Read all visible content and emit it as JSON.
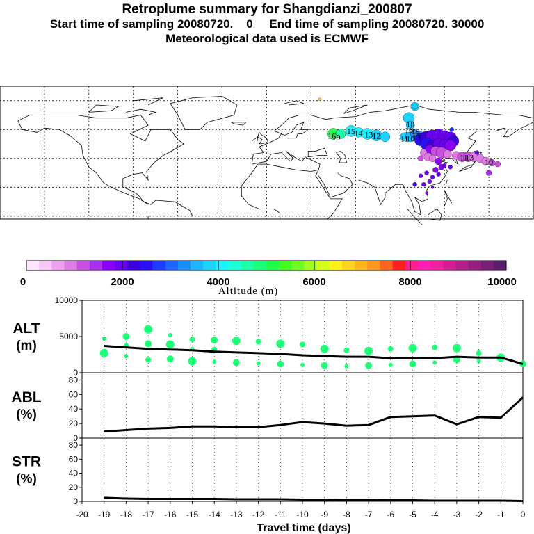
{
  "header": {
    "title": "Retroplume summary for Shangdianzi_200807",
    "subtitle": "Start time of sampling 20080720.    0     End time of sampling 20080720. 30000",
    "met_line": "Meteorological data used is ECMWF"
  },
  "chart_data": [
    {
      "type": "map",
      "name": "retroplume-map",
      "day_labels": [
        {
          "text": "19",
          "lon": 100.5,
          "lat": 58
        },
        {
          "text": "18",
          "lon": 97,
          "lat": 63
        },
        {
          "text": "16",
          "lon": 96,
          "lat": 59
        },
        {
          "text": "15",
          "lon": 57,
          "lat": 58
        },
        {
          "text": "14",
          "lon": 62,
          "lat": 57
        },
        {
          "text": "13",
          "lon": 69,
          "lat": 56
        },
        {
          "text": "12",
          "lon": 74,
          "lat": 55
        },
        {
          "text": "16",
          "lon": 44,
          "lat": 55
        },
        {
          "text": "19",
          "lon": 47,
          "lat": 54
        },
        {
          "text": "11",
          "lon": 93,
          "lat": 53
        },
        {
          "text": "10",
          "lon": 97,
          "lat": 53
        },
        {
          "text": "13",
          "lon": 101,
          "lat": 54
        },
        {
          "text": "11",
          "lon": 133,
          "lat": 40
        },
        {
          "text": "13",
          "lon": 137,
          "lat": 40
        },
        {
          "text": "10",
          "lon": 150,
          "lat": 37
        }
      ]
    },
    {
      "type": "colorbar",
      "name": "altitude-colorbar",
      "xlabel": "Altitude (m)",
      "range": [
        0,
        10000
      ],
      "tick_labels": [
        "0",
        "2000",
        "4000",
        "6000",
        "8000",
        "10000"
      ],
      "tick_values": [
        0,
        2000,
        4000,
        6000,
        8000,
        10000
      ],
      "colors": [
        "#fde6fd",
        "#f6c6f6",
        "#eea0ee",
        "#e07be4",
        "#c84fe0",
        "#a72fea",
        "#8a00f0",
        "#6a00f0",
        "#3c00d8",
        "#2a10f0",
        "#1e3cff",
        "#1e64ff",
        "#1e8cff",
        "#1eb4ff",
        "#1ed2ff",
        "#1ef0ff",
        "#1effd8",
        "#1effa8",
        "#1eff78",
        "#1eff48",
        "#40ff1e",
        "#6eff1e",
        "#a0ff1e",
        "#d2ff1e",
        "#fff01e",
        "#ffd21e",
        "#ffb41e",
        "#ff961e",
        "#ff641e",
        "#ff1e1e",
        "#ff1e8c",
        "#ff1eb4",
        "#f01ea0",
        "#d21e96",
        "#b41e8c",
        "#961e82",
        "#781e78",
        "#5a1e6e"
      ]
    },
    {
      "type": "line",
      "name": "alt-panel",
      "ylabel": "ALT",
      "yunit": "(m)",
      "ylim": [
        0,
        10000
      ],
      "ytick_labels": [
        "0",
        "5000",
        "10000"
      ],
      "ytick_values": [
        0,
        5000,
        10000
      ],
      "x": [
        -19,
        -18,
        -17,
        -16,
        -15,
        -14,
        -13,
        -12,
        -11,
        -10,
        -9,
        -8,
        -7,
        -6,
        -5,
        -4,
        -3,
        -2,
        -1,
        0
      ],
      "values": [
        3700,
        3500,
        3300,
        3200,
        3100,
        2900,
        2800,
        2700,
        2600,
        2400,
        2300,
        2200,
        2200,
        2000,
        2000,
        2000,
        2200,
        2100,
        2100,
        1200
      ],
      "scatter": {
        "x": [
          -19,
          -19,
          -18,
          -18,
          -18,
          -17,
          -17,
          -17,
          -16,
          -16,
          -16,
          -15,
          -15,
          -15,
          -14,
          -14,
          -14,
          -13,
          -13,
          -12,
          -12,
          -11,
          -11,
          -10,
          -10,
          -9,
          -9,
          -8,
          -8,
          -7,
          -7,
          -6,
          -6,
          -5,
          -5,
          -4,
          -4,
          -3,
          -3,
          -2,
          -2,
          -1,
          0
        ],
        "y": [
          4700,
          2700,
          5000,
          3700,
          2300,
          6000,
          4000,
          1800,
          5200,
          3900,
          1900,
          4600,
          3300,
          1600,
          4500,
          3200,
          1500,
          4400,
          1400,
          4300,
          1300,
          4000,
          1200,
          3900,
          1100,
          3300,
          1000,
          3100,
          900,
          3000,
          1000,
          3300,
          1100,
          3400,
          1200,
          3500,
          1400,
          3400,
          1800,
          2700,
          1600,
          2100,
          1200
        ],
        "color": "#1eff78"
      }
    },
    {
      "type": "line",
      "name": "abl-panel",
      "ylabel": "ABL",
      "yunit": "(%)",
      "ylim": [
        0,
        90
      ],
      "ytick_labels": [
        "0",
        "20",
        "40",
        "60",
        "80"
      ],
      "ytick_values": [
        0,
        20,
        40,
        60,
        80
      ],
      "x": [
        -19,
        -18,
        -17,
        -16,
        -15,
        -14,
        -13,
        -12,
        -11,
        -10,
        -9,
        -8,
        -7,
        -6,
        -5,
        -4,
        -3,
        -2,
        -1,
        0
      ],
      "values": [
        9,
        11,
        13,
        14,
        16,
        16,
        15,
        15,
        18,
        22,
        20,
        17,
        18,
        29,
        30,
        31,
        19,
        29,
        28,
        56
      ]
    },
    {
      "type": "line",
      "name": "str-panel",
      "ylabel": "STR",
      "yunit": "(%)",
      "ylim": [
        0,
        90
      ],
      "ytick_labels": [
        "0",
        "20",
        "40",
        "60",
        "80"
      ],
      "ytick_values": [
        0,
        20,
        40,
        60,
        80
      ],
      "x": [
        -19,
        -18,
        -17,
        -16,
        -15,
        -14,
        -13,
        -12,
        -11,
        -10,
        -9,
        -8,
        -7,
        -6,
        -5,
        -4,
        -3,
        -2,
        -1,
        0
      ],
      "values": [
        5,
        4,
        3.5,
        3.5,
        3.5,
        3.5,
        3,
        3,
        3,
        2.5,
        2.5,
        2,
        2,
        1.5,
        1.5,
        1,
        1,
        1,
        1,
        0.5
      ],
      "xlabel": "Travel time (days)",
      "xlim": [
        -20,
        0
      ],
      "xtick_labels": [
        "-20",
        "-19",
        "-18",
        "-17",
        "-16",
        "-15",
        "-14",
        "-13",
        "-12",
        "-11",
        "-10",
        "-9",
        "-8",
        "-7",
        "-6",
        "-5",
        "-4",
        "-3",
        "-2",
        "-1",
        "0"
      ],
      "xtick_values": [
        -20,
        -19,
        -18,
        -17,
        -16,
        -15,
        -14,
        -13,
        -12,
        -11,
        -10,
        -9,
        -8,
        -7,
        -6,
        -5,
        -4,
        -3,
        -2,
        -1,
        0
      ]
    }
  ]
}
